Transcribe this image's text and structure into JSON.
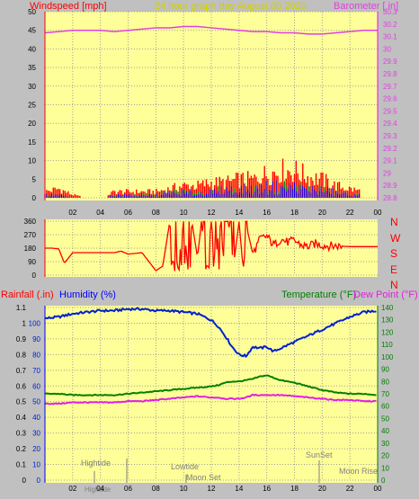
{
  "colors": {
    "background": "#c0c0c0",
    "plot": "#ffff99",
    "grid": "#9f9f9f",
    "title": "#d0d000",
    "windspeed": "#ff0000",
    "gust_layer": "#ff0000",
    "wind_green": "#00a000",
    "wind_blue": "#0000ff",
    "barometer": "#e040e0",
    "direction": "#ff0000",
    "humidity": "#0020d0",
    "temperature": "#008000",
    "dewpoint": "#e020e0",
    "rain_axis": "#ff0000",
    "tide": "#808080"
  },
  "top": {
    "left_label": "Windspeed [mph]",
    "title": "24 hour graph day   August 08 2020",
    "right_label": "Barometer [.in]"
  },
  "direction_letters": [
    "N",
    "W",
    "S",
    "E",
    "N"
  ],
  "bottom": {
    "rain_label": "Rainfall (.in)",
    "humidity_label": "Humidity (%)",
    "temp_label": "Temperature (°F)",
    "dew_label": "Dew Point (°F)"
  },
  "events": {
    "hightide_upper": "Hightide",
    "hightide_lower": "Hightide",
    "lowtide": "Lowtide",
    "moonset": "Moon Set",
    "sunset": "SunSet",
    "moonrise": "Moon Rise"
  },
  "chart_data": [
    {
      "type": "area",
      "x_ticks": [
        "02",
        "04",
        "06",
        "08",
        "10",
        "12",
        "14",
        "16",
        "18",
        "20",
        "22",
        "00"
      ],
      "y_left_ticks": [
        "0",
        "5",
        "10",
        "15",
        "20",
        "25",
        "30",
        "35",
        "40",
        "45",
        "50"
      ],
      "y_right_ticks": [
        "28.8",
        "28.9",
        "29",
        "29.1",
        "29.2",
        "29.3",
        "29.4",
        "29.5",
        "29.6",
        "29.7",
        "29.8",
        "29.9",
        "30",
        "30.1",
        "30.2",
        "30.3"
      ],
      "ylim_left": [
        0,
        50
      ],
      "ylim_right": [
        28.8,
        30.3
      ],
      "hours": [
        0,
        1,
        2,
        3,
        4,
        5,
        6,
        7,
        8,
        9,
        10,
        11,
        12,
        13,
        14,
        15,
        16,
        17,
        18,
        19,
        20,
        21,
        22,
        23,
        24
      ],
      "series": [
        {
          "values": [
            2,
            3,
            1,
            0,
            0,
            2,
            2,
            2,
            2,
            3,
            4,
            4,
            5,
            5,
            6,
            6,
            8,
            9,
            9,
            7,
            6,
            4,
            3,
            2,
            1
          ]
        },
        {
          "values": [
            1,
            1,
            0,
            0,
            0,
            1,
            1,
            1,
            1,
            2,
            2,
            2,
            2,
            3,
            3,
            3,
            4,
            4,
            4,
            3,
            3,
            2,
            1,
            1,
            0
          ]
        },
        {
          "values": [
            30.13,
            30.14,
            30.15,
            30.15,
            30.15,
            30.14,
            30.15,
            30.16,
            30.17,
            30.17,
            30.18,
            30.18,
            30.17,
            30.16,
            30.15,
            30.14,
            30.14,
            30.13,
            30.13,
            30.12,
            30.12,
            30.13,
            30.14,
            30.15,
            30.15
          ]
        }
      ]
    },
    {
      "type": "line",
      "x_ticks": [
        "02",
        "04",
        "06",
        "08",
        "10",
        "12",
        "14",
        "16",
        "18",
        "20",
        "22",
        "00"
      ],
      "y_ticks": [
        "0",
        "90",
        "180",
        "270",
        "360"
      ],
      "ylim": [
        0,
        360
      ],
      "hours": [
        0,
        0.5,
        1,
        1.4,
        2,
        3,
        4,
        5,
        5.5,
        6,
        7,
        8,
        8.5,
        9,
        9.3,
        9.6,
        10,
        10.3,
        10.6,
        11,
        11.3,
        11.6,
        12,
        12.3,
        12.6,
        13,
        13.3,
        13.6,
        14,
        14.3,
        14.6,
        15,
        15.5,
        16,
        16.5,
        17,
        17.5,
        18,
        18.5,
        19,
        19.5,
        20,
        20.5,
        21,
        22,
        23,
        24
      ],
      "series": [
        {
          "values": [
            180,
            180,
            175,
            80,
            150,
            150,
            150,
            150,
            160,
            140,
            150,
            30,
            60,
            355,
            120,
            50,
            355,
            60,
            355,
            120,
            355,
            40,
            355,
            80,
            355,
            30,
            340,
            60,
            355,
            40,
            300,
            140,
            240,
            260,
            200,
            240,
            220,
            230,
            200,
            190,
            210,
            200,
            195,
            195,
            190,
            190,
            190
          ]
        }
      ]
    },
    {
      "type": "line",
      "x_ticks": [
        "02",
        "04",
        "06",
        "08",
        "10",
        "12",
        "14",
        "16",
        "18",
        "20",
        "22",
        "00"
      ],
      "y_left_ticks": [
        "0",
        "0.1",
        "0.2",
        "0.3",
        "0.4",
        "0.5",
        "0.6",
        "0.7",
        "0.8",
        "0.9",
        "1",
        "1.1"
      ],
      "y_mid_ticks": [
        "0",
        "10",
        "20",
        "30",
        "40",
        "50",
        "60",
        "70",
        "80",
        "90",
        "100"
      ],
      "y_right_ticks": [
        "0",
        "10",
        "20",
        "30",
        "40",
        "50",
        "60",
        "70",
        "80",
        "90",
        "100",
        "110",
        "120",
        "130",
        "140"
      ],
      "ylim_left": [
        0,
        1.1
      ],
      "ylim_right": [
        0,
        140
      ],
      "hours": [
        0,
        1,
        2,
        3,
        4,
        5,
        6,
        7,
        8,
        9,
        10,
        11,
        12,
        12.5,
        13,
        13.5,
        14,
        14.5,
        15,
        15.5,
        16,
        16.5,
        17,
        18,
        19,
        20,
        21,
        22,
        23,
        24
      ],
      "series": [
        {
          "values": [
            1.03,
            1.04,
            1.06,
            1.07,
            1.08,
            1.08,
            1.09,
            1.09,
            1.08,
            1.08,
            1.07,
            1.06,
            1.02,
            0.98,
            0.92,
            0.85,
            0.8,
            0.79,
            0.85,
            0.84,
            0.85,
            0.82,
            0.84,
            0.88,
            0.92,
            0.96,
            1.0,
            1.04,
            1.07,
            1.08
          ]
        },
        {
          "values": [
            70,
            70,
            69,
            69,
            69,
            69,
            70,
            71,
            72,
            73,
            74,
            75,
            76,
            77,
            79,
            80,
            80,
            81,
            82,
            84,
            85,
            83,
            81,
            79,
            76,
            73,
            71,
            70,
            70,
            69
          ]
        },
        {
          "values": [
            62,
            62,
            63,
            63,
            63,
            63,
            64,
            64,
            65,
            66,
            67,
            68,
            67,
            67,
            66,
            66,
            66,
            67,
            69,
            69,
            69,
            69,
            69,
            68,
            67,
            66,
            65,
            65,
            64,
            64
          ]
        }
      ]
    }
  ]
}
